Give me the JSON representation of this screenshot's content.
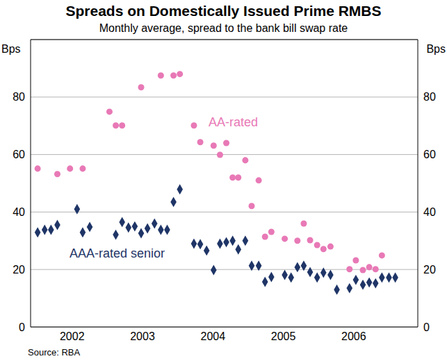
{
  "chart_data": {
    "type": "scatter",
    "title": "Spreads on Domestically Issued Prime RMBS",
    "subtitle": "Monthly average, spread to the bank bill swap rate",
    "y_label": "Bps",
    "source": "Source: RBA",
    "xlim": [
      2001.91,
      2007.41
    ],
    "xticks": [
      {
        "value": 2002.5,
        "label": "2002"
      },
      {
        "value": 2003.5,
        "label": "2003"
      },
      {
        "value": 2004.5,
        "label": "2004"
      },
      {
        "value": 2005.5,
        "label": "2005"
      },
      {
        "value": 2006.5,
        "label": "2006"
      }
    ],
    "ylim": [
      0,
      100
    ],
    "yticks": [
      0,
      20,
      40,
      60,
      80
    ],
    "grid": true,
    "series": [
      {
        "name": "AA-rated",
        "color": "#e879b6",
        "marker": "circle",
        "x": [
          2002.01,
          2002.29,
          2002.47,
          2002.65,
          2003.03,
          2003.12,
          2003.21,
          2003.48,
          2003.76,
          2003.94,
          2004.03,
          2004.23,
          2004.32,
          2004.51,
          2004.6,
          2004.69,
          2004.78,
          2004.86,
          2004.96,
          2005.05,
          2005.15,
          2005.24,
          2005.33,
          2005.52,
          2005.7,
          2005.79,
          2005.88,
          2005.98,
          2006.07,
          2006.17,
          2006.44,
          2006.53,
          2006.63,
          2006.72,
          2006.81,
          2006.9
        ],
        "values": [
          55.1,
          53.2,
          55.1,
          55.1,
          74.9,
          70.1,
          70.1,
          83.4,
          87.5,
          87.5,
          88,
          70.1,
          64.3,
          63.1,
          59.9,
          64,
          52,
          52,
          58,
          42.1,
          51,
          31.4,
          33.1,
          30.7,
          30,
          36,
          30.2,
          28.5,
          27.1,
          28,
          20.1,
          23.2,
          19.8,
          20.8,
          20.1,
          24.9
        ]
      },
      {
        "name": "AAA-rated senior",
        "color": "#1f3567",
        "marker": "diamond",
        "x": [
          2002.01,
          2002.11,
          2002.2,
          2002.29,
          2002.57,
          2002.65,
          2002.75,
          2003.12,
          2003.21,
          2003.3,
          2003.39,
          2003.48,
          2003.57,
          2003.67,
          2003.76,
          2003.85,
          2003.94,
          2004.03,
          2004.23,
          2004.32,
          2004.41,
          2004.51,
          2004.6,
          2004.69,
          2004.78,
          2004.86,
          2004.96,
          2005.05,
          2005.15,
          2005.24,
          2005.33,
          2005.52,
          2005.61,
          2005.7,
          2005.79,
          2005.88,
          2005.98,
          2006.07,
          2006.17,
          2006.26,
          2006.44,
          2006.53,
          2006.63,
          2006.72,
          2006.81,
          2006.9,
          2007.0,
          2007.09
        ],
        "values": [
          32.9,
          33.8,
          33.8,
          35.5,
          41,
          32.9,
          34.8,
          32.1,
          36.5,
          34.6,
          35,
          32.6,
          34.3,
          36,
          33.8,
          33.8,
          43.5,
          47.9,
          29,
          28.8,
          26.6,
          19.8,
          29,
          29.5,
          30,
          27,
          30,
          21.3,
          21.3,
          15.7,
          17.4,
          18.1,
          17.2,
          20.8,
          21.3,
          19.1,
          17.2,
          18.9,
          18.1,
          13,
          13.5,
          16.4,
          14.7,
          15.5,
          15.2,
          17.2,
          17.2,
          17.2
        ]
      }
    ]
  }
}
